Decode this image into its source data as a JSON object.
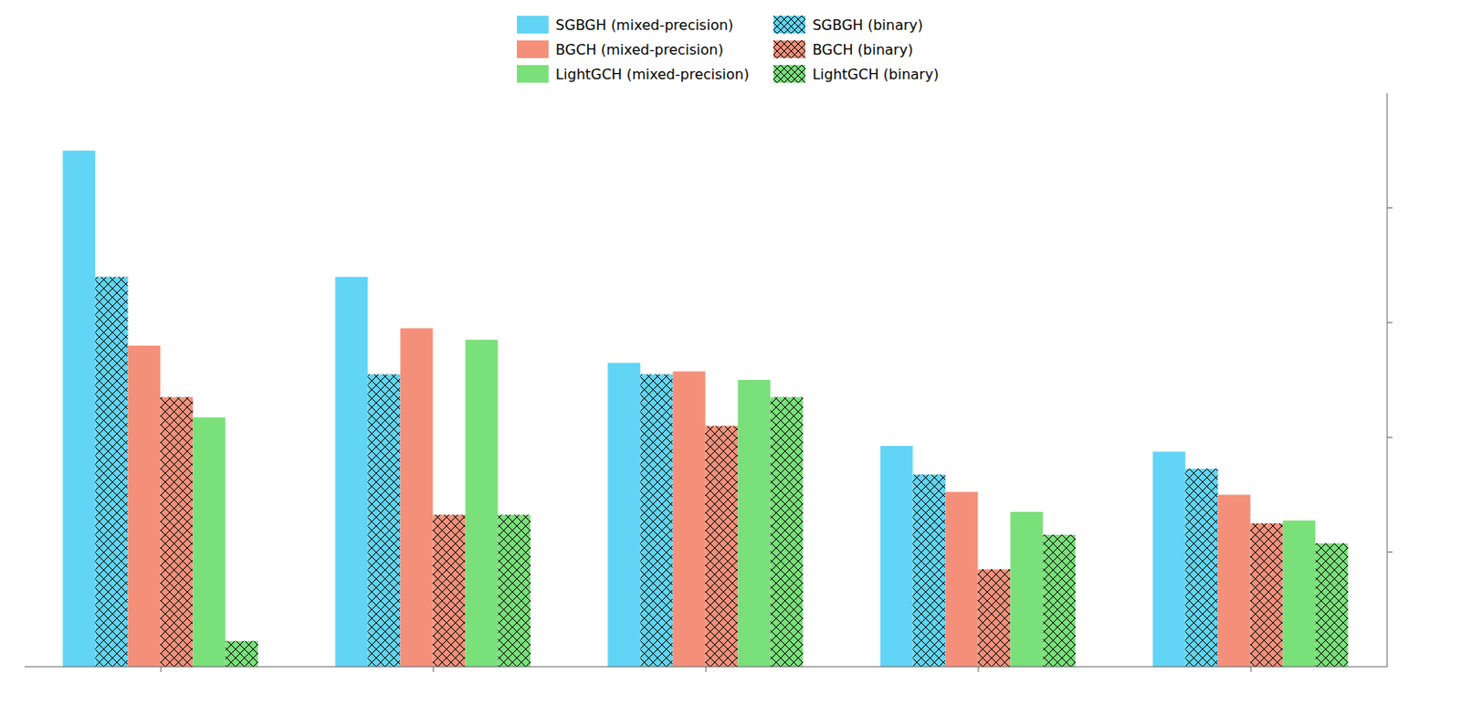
{
  "chart_data": {
    "type": "bar",
    "categories": [
      null,
      null,
      null,
      null,
      null
    ],
    "series": [
      {
        "name": "SGBGH (mixed-precision)",
        "color": "#62D4F5",
        "values": [
          0.9,
          0.68,
          0.53,
          0.385,
          0.375
        ]
      },
      {
        "name": "SGBGH (binary)",
        "color": "#62D4F5",
        "values": [
          0.68,
          0.51,
          0.51,
          0.335,
          0.345
        ]
      },
      {
        "name": "BGCH (mixed-precision)",
        "color": "#F4907A",
        "values": [
          0.56,
          0.59,
          0.515,
          0.305,
          0.3
        ]
      },
      {
        "name": "BGCH (binary)",
        "color": "#F4907A",
        "values": [
          0.47,
          0.265,
          0.42,
          0.17,
          0.25
        ]
      },
      {
        "name": "LightGCH (mixed-precision)",
        "color": "#7AE07A",
        "values": [
          0.435,
          0.57,
          0.5,
          0.27,
          0.255
        ]
      },
      {
        "name": "LightGCH (binary)",
        "color": "#7AE07A",
        "values": [
          0.045,
          0.265,
          0.47,
          0.23,
          0.215
        ]
      }
    ],
    "ylim": [
      0,
      1.0
    ],
    "yticks": [
      0.2,
      0.4,
      0.6,
      0.8
    ],
    "grid": false,
    "legend": "top",
    "tick_labels": false
  }
}
